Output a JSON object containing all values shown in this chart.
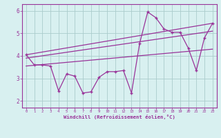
{
  "x": [
    0,
    1,
    2,
    3,
    4,
    5,
    6,
    7,
    8,
    9,
    10,
    11,
    12,
    13,
    14,
    15,
    16,
    17,
    18,
    19,
    20,
    21,
    22,
    23
  ],
  "y_main": [
    4.05,
    3.6,
    3.6,
    3.55,
    2.45,
    3.2,
    3.1,
    2.35,
    2.4,
    3.05,
    3.3,
    3.3,
    3.35,
    2.35,
    4.55,
    5.95,
    5.7,
    5.2,
    5.05,
    5.05,
    4.35,
    3.35,
    4.8,
    5.45
  ],
  "reg_line1": [
    [
      0,
      23
    ],
    [
      3.55,
      4.3
    ]
  ],
  "reg_line2": [
    [
      0,
      23
    ],
    [
      3.9,
      5.1
    ]
  ],
  "reg_line3": [
    [
      0,
      23
    ],
    [
      4.05,
      5.45
    ]
  ],
  "line_color": "#993399",
  "bg_color": "#d8f0f0",
  "grid_color": "#aacccc",
  "xlabel": "Windchill (Refroidissement éolien,°C)",
  "ylim": [
    1.7,
    6.3
  ],
  "xlim": [
    -0.5,
    23.5
  ],
  "yticks": [
    2,
    3,
    4,
    5,
    6
  ],
  "xticks": [
    0,
    1,
    2,
    3,
    4,
    5,
    6,
    7,
    8,
    9,
    10,
    11,
    12,
    13,
    14,
    15,
    16,
    17,
    18,
    19,
    20,
    21,
    22,
    23
  ]
}
